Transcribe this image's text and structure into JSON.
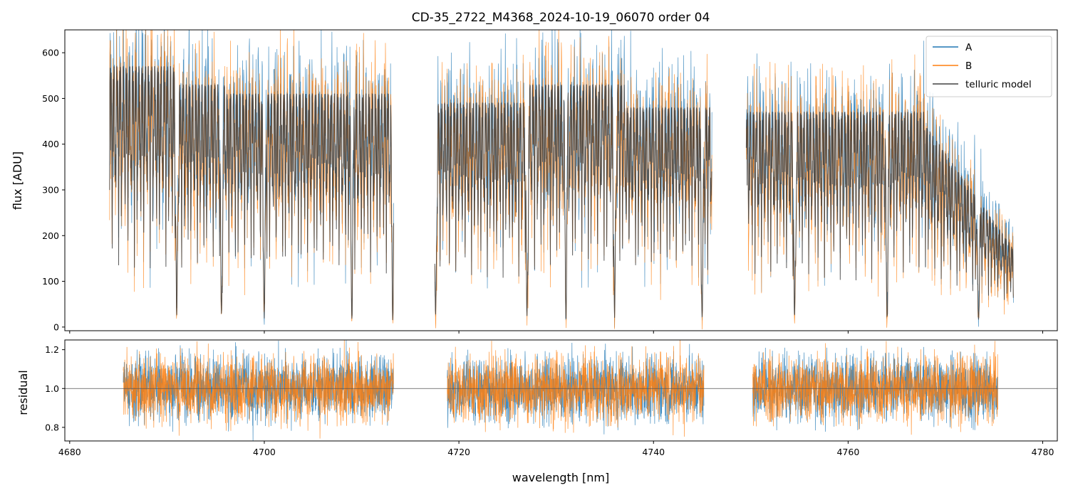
{
  "chart_data": [
    {
      "type": "line",
      "title": "CD-35_2722_M4368_2024-10-19_06070  order 04",
      "xlabel": "",
      "ylabel": "flux [ADU]",
      "xlim": [
        4679.5,
        4781.5
      ],
      "ylim": [
        -8,
        650
      ],
      "xticks": [
        4680,
        4700,
        4720,
        4740,
        4760,
        4780
      ],
      "yticks": [
        0,
        100,
        200,
        300,
        400,
        500,
        600
      ],
      "grid": false,
      "legend_position": "top-right",
      "legend": [
        "A",
        "B",
        "telluric model"
      ],
      "series": [
        {
          "name": "A",
          "color": "#1f77b4",
          "x": [
            4684.1,
            4691.0,
            4695.6,
            4700.0,
            4709.0,
            4713.2,
            4717.6,
            4727.0,
            4731.0,
            4736.0,
            4745.0,
            4749.0,
            4754.5,
            4764.0,
            4773.4,
            4776.8
          ]
        },
        {
          "name": "B",
          "color": "#ff7f0e",
          "x": [
            4684.1,
            4691.0,
            4695.6,
            4700.0,
            4709.0,
            4713.2,
            4717.6,
            4727.0,
            4731.0,
            4736.0,
            4745.0,
            4749.0,
            4754.5,
            4764.0,
            4773.4,
            4776.8
          ]
        },
        {
          "name": "telluric model",
          "color": "#404040",
          "x": [
            4684.1,
            4691.0,
            4695.6,
            4700.0,
            4709.0,
            4713.2,
            4717.6,
            4727.0,
            4731.0,
            4736.0,
            4745.0,
            4749.0,
            4754.5,
            4764.0,
            4773.4,
            4776.8
          ]
        }
      ]
    },
    {
      "type": "line",
      "title": "",
      "xlabel": "wavelength [nm]",
      "ylabel": "residual",
      "xlim": [
        4679.5,
        4781.5
      ],
      "ylim": [
        0.73,
        1.25
      ],
      "xticks": [
        4680,
        4700,
        4720,
        4740,
        4760,
        4780
      ],
      "yticks": [
        0.8,
        1.0,
        1.2
      ],
      "reference_line": 1.0,
      "segments": [
        [
          4685.5,
          4713.3
        ],
        [
          4718.8,
          4745.2
        ],
        [
          4750.2,
          4775.4
        ]
      ],
      "series": [
        {
          "name": "A",
          "color": "#1f77b4"
        },
        {
          "name": "B",
          "color": "#ff7f0e"
        }
      ]
    }
  ]
}
